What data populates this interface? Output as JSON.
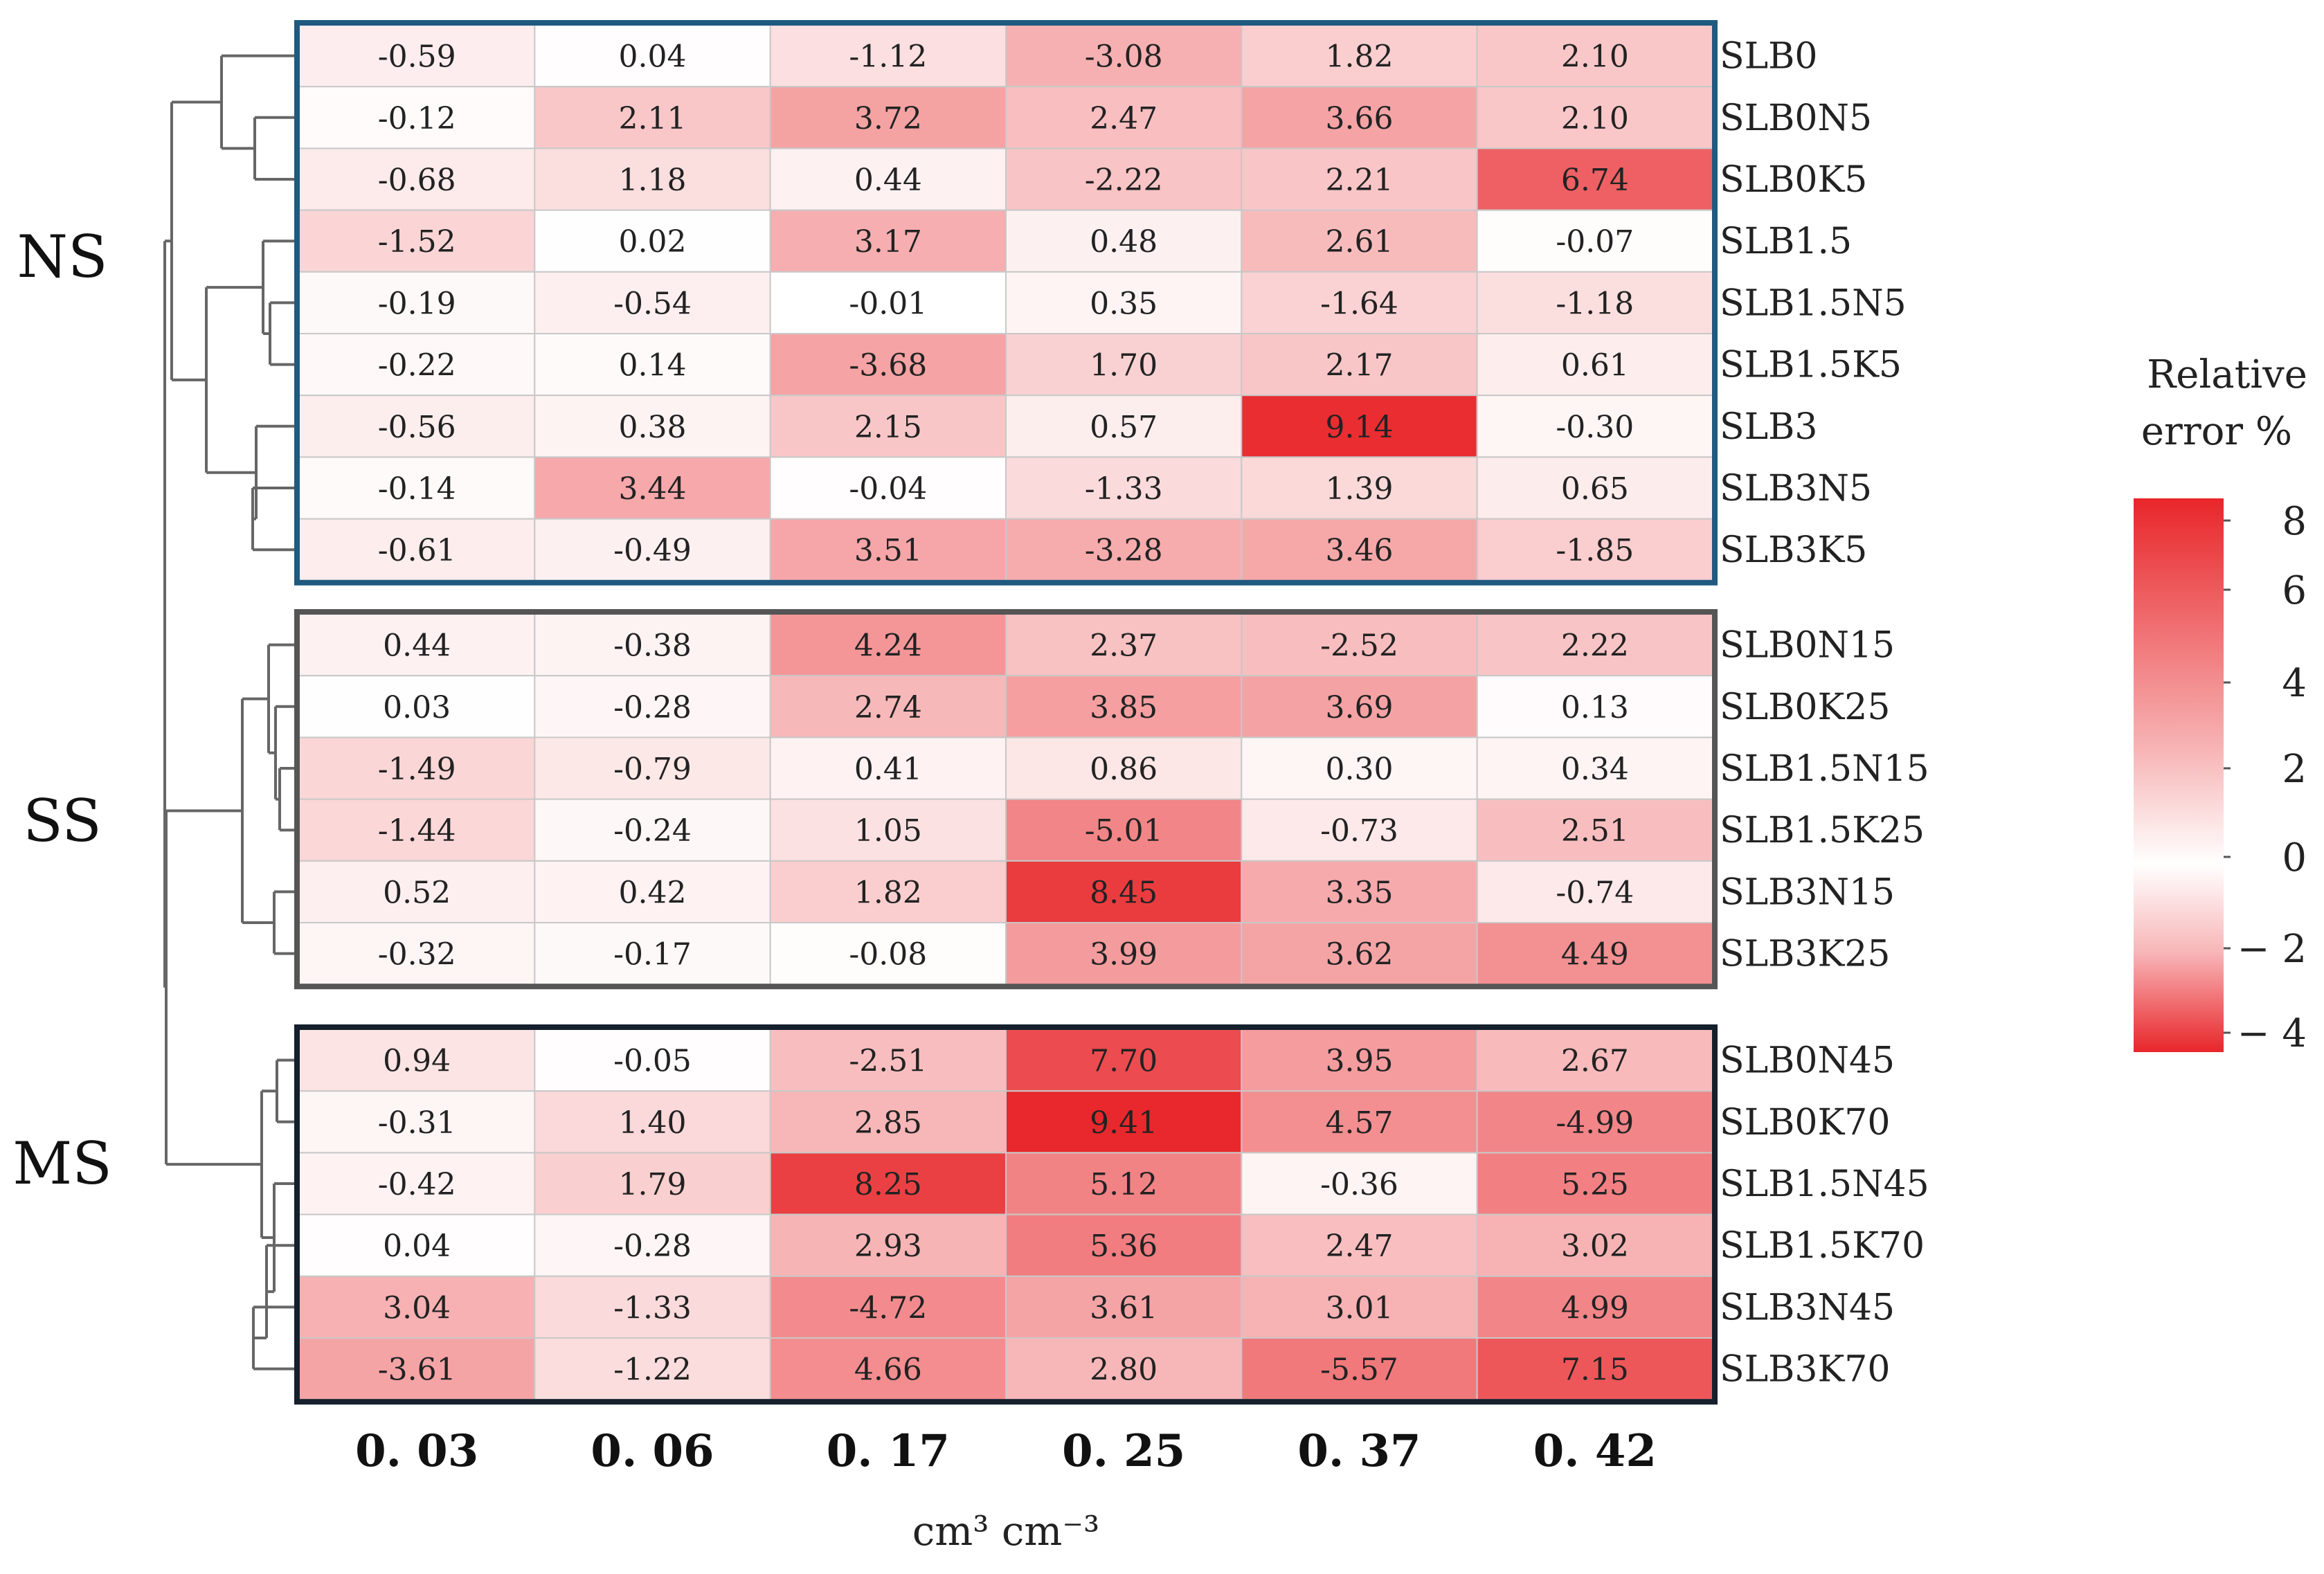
{
  "chart_data": {
    "type": "heatmap",
    "title": "",
    "xlabel": "cm³ cm⁻³",
    "ylabel": "",
    "x_categories": [
      "0. 03",
      "0. 06",
      "0. 17",
      "0. 25",
      "0. 37",
      "0. 42"
    ],
    "groups": [
      {
        "name": "NS",
        "border_color": "#1f5a80",
        "rows": [
          {
            "label": "SLB0",
            "values": [
              -0.59,
              0.04,
              -1.12,
              -3.08,
              1.82,
              2.1
            ]
          },
          {
            "label": "SLB0N5",
            "values": [
              -0.12,
              2.11,
              3.72,
              2.47,
              3.66,
              2.1
            ]
          },
          {
            "label": "SLB0K5",
            "values": [
              -0.68,
              1.18,
              0.44,
              -2.22,
              2.21,
              6.74
            ]
          },
          {
            "label": "SLB1.5",
            "values": [
              -1.52,
              0.02,
              3.17,
              0.48,
              2.61,
              -0.07
            ]
          },
          {
            "label": "SLB1.5N5",
            "values": [
              -0.19,
              -0.54,
              -0.01,
              0.35,
              -1.64,
              -1.18
            ]
          },
          {
            "label": "SLB1.5K5",
            "values": [
              -0.22,
              0.14,
              -3.68,
              1.7,
              2.17,
              0.61
            ]
          },
          {
            "label": "SLB3",
            "values": [
              -0.56,
              0.38,
              2.15,
              0.57,
              9.14,
              -0.3
            ]
          },
          {
            "label": "SLB3N5",
            "values": [
              -0.14,
              3.44,
              -0.04,
              -1.33,
              1.39,
              0.65
            ]
          },
          {
            "label": "SLB3K5",
            "values": [
              -0.61,
              -0.49,
              3.51,
              -3.28,
              3.46,
              -1.85
            ]
          }
        ]
      },
      {
        "name": "SS",
        "border_color": "#555555",
        "rows": [
          {
            "label": "SLB0N15",
            "values": [
              0.44,
              -0.38,
              4.24,
              2.37,
              -2.52,
              2.22
            ]
          },
          {
            "label": "SLB0K25",
            "values": [
              0.03,
              -0.28,
              2.74,
              3.85,
              3.69,
              0.13
            ]
          },
          {
            "label": "SLB1.5N15",
            "values": [
              -1.49,
              -0.79,
              0.41,
              0.86,
              0.3,
              0.34
            ]
          },
          {
            "label": "SLB1.5K25",
            "values": [
              -1.44,
              -0.24,
              1.05,
              -5.01,
              -0.73,
              2.51
            ]
          },
          {
            "label": "SLB3N15",
            "values": [
              0.52,
              0.42,
              1.82,
              8.45,
              3.35,
              -0.74
            ]
          },
          {
            "label": "SLB3K25",
            "values": [
              -0.32,
              -0.17,
              -0.08,
              3.99,
              3.62,
              4.49
            ]
          }
        ]
      },
      {
        "name": "MS",
        "border_color": "#14202c",
        "rows": [
          {
            "label": "SLB0N45",
            "values": [
              0.94,
              -0.05,
              -2.51,
              7.7,
              3.95,
              2.67
            ]
          },
          {
            "label": "SLB0K70",
            "values": [
              -0.31,
              1.4,
              2.85,
              9.41,
              4.57,
              -4.99
            ]
          },
          {
            "label": "SLB1.5N45",
            "values": [
              -0.42,
              1.79,
              8.25,
              5.12,
              -0.36,
              5.25
            ]
          },
          {
            "label": "SLB1.5K70",
            "values": [
              0.04,
              -0.28,
              2.93,
              5.36,
              2.47,
              3.02
            ]
          },
          {
            "label": "SLB3N45",
            "values": [
              3.04,
              -1.33,
              -4.72,
              3.61,
              3.01,
              4.99
            ]
          },
          {
            "label": "SLB3K70",
            "values": [
              -3.61,
              -1.22,
              4.66,
              2.8,
              -5.57,
              7.15
            ]
          }
        ]
      }
    ],
    "colorbar": {
      "title_line1": "Relative",
      "title_line2": "error %",
      "ticks": [
        "8",
        "6",
        "4",
        "2",
        "0",
        "− 2",
        "− 4"
      ],
      "color_high": "#e8262a",
      "color_mid": "#ffffff"
    }
  }
}
